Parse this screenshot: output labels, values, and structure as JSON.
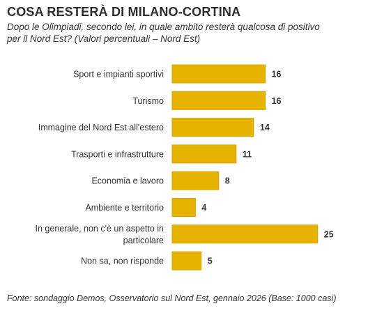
{
  "chart_data": {
    "type": "bar",
    "orientation": "horizontal",
    "title": "COSA RESTERÀ DI MILANO-CORTINA",
    "subtitle": "Dopo le Olimpiadi, secondo lei, in quale ambito resterà qualcosa di positivo\nper il Nord Est? (Valori percentuali – Nord Est)",
    "categories": [
      "Sport e impianti sportivi",
      "Turismo",
      "Immagine del Nord Est all'estero",
      "Trasporti e infrastrutture",
      "Economia e lavoro",
      "Ambiente e territorio",
      "In generale, non c'è un aspetto in particolare",
      "Non sa, non risponde"
    ],
    "values": [
      16,
      16,
      14,
      11,
      8,
      4,
      25,
      5
    ],
    "grid": false,
    "bar_color": "#e6b400",
    "bar_edge_color": "#d4a500"
  },
  "source": "Fonte: sondaggio Demos, Osservatorio sul Nord Est, gennaio 2026 (Base: 1000 casi)"
}
